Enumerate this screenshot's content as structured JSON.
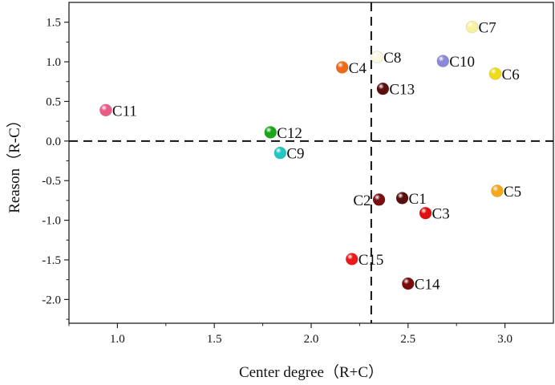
{
  "chart_data": {
    "type": "scatter",
    "xlabel": "Center degree（R+C）",
    "ylabel": "Reason（R-C）",
    "xlim": [
      0.75,
      3.25
    ],
    "ylim": [
      -2.3,
      1.75
    ],
    "xticks": [
      "1.0",
      "1.5",
      "2.0",
      "2.5",
      "3.0"
    ],
    "yticks": [
      "1.5",
      "1.0",
      "0.5",
      "0.0",
      "-0.5",
      "-1.0",
      "-1.5",
      "-2.0"
    ],
    "xtick_values": [
      1.0,
      1.5,
      2.0,
      2.5,
      3.0
    ],
    "ytick_values": [
      1.5,
      1.0,
      0.5,
      0.0,
      -0.5,
      -1.0,
      -1.5,
      -2.0
    ],
    "reference_lines": {
      "x": 2.31,
      "y": 0.0,
      "style": "dashed"
    },
    "grid": false,
    "points": [
      {
        "label": "C1",
        "x": 2.47,
        "y": -0.72,
        "color": "#5a0f0f",
        "label_side": "right"
      },
      {
        "label": "C2",
        "x": 2.35,
        "y": -0.74,
        "color": "#7a0f12",
        "label_side": "left"
      },
      {
        "label": "C3",
        "x": 2.59,
        "y": -0.91,
        "color": "#e01010",
        "label_side": "right"
      },
      {
        "label": "C4",
        "x": 2.16,
        "y": 0.93,
        "color": "#ee6a1a",
        "label_side": "right"
      },
      {
        "label": "C5",
        "x": 2.96,
        "y": -0.63,
        "color": "#f5a81c",
        "label_side": "right"
      },
      {
        "label": "C6",
        "x": 2.95,
        "y": 0.85,
        "color": "#eedc1a",
        "label_side": "right"
      },
      {
        "label": "C7",
        "x": 2.83,
        "y": 1.44,
        "color": "#f6f2a0",
        "label_side": "right"
      },
      {
        "label": "C8",
        "x": 2.34,
        "y": 1.06,
        "color": "#fbf8e2",
        "label_side": "right"
      },
      {
        "label": "C9",
        "x": 1.84,
        "y": -0.15,
        "color": "#22c6c2",
        "label_side": "right"
      },
      {
        "label": "C10",
        "x": 2.68,
        "y": 1.01,
        "color": "#8c88d8",
        "label_side": "right"
      },
      {
        "label": "C11",
        "x": 0.94,
        "y": 0.39,
        "color": "#ec5a86",
        "label_side": "right"
      },
      {
        "label": "C12",
        "x": 1.79,
        "y": 0.11,
        "color": "#1ca61c",
        "label_side": "right"
      },
      {
        "label": "C13",
        "x": 2.37,
        "y": 0.66,
        "color": "#5a1010",
        "label_side": "right"
      },
      {
        "label": "C14",
        "x": 2.5,
        "y": -1.8,
        "color": "#7a0c0c",
        "label_side": "right"
      },
      {
        "label": "C15",
        "x": 2.21,
        "y": -1.49,
        "color": "#ec1a1a",
        "label_side": "right"
      }
    ]
  }
}
